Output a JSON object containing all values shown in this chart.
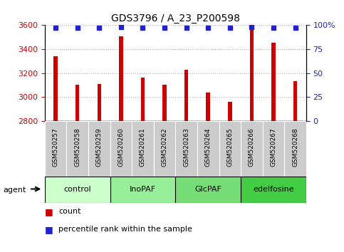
{
  "title": "GDS3796 / A_23_P200598",
  "samples": [
    "GSM520257",
    "GSM520258",
    "GSM520259",
    "GSM520260",
    "GSM520261",
    "GSM520262",
    "GSM520263",
    "GSM520264",
    "GSM520265",
    "GSM520266",
    "GSM520267",
    "GSM520268"
  ],
  "counts": [
    3340,
    3100,
    3110,
    3510,
    3160,
    3105,
    3230,
    3035,
    2960,
    3560,
    3455,
    3130
  ],
  "percentile_ranks": [
    97,
    97,
    97,
    98,
    97,
    97,
    97,
    97,
    97,
    98,
    97,
    97
  ],
  "ylim_left": [
    2800,
    3600
  ],
  "ylim_right": [
    0,
    100
  ],
  "yticks_left": [
    2800,
    3000,
    3200,
    3400,
    3600
  ],
  "yticks_right": [
    0,
    25,
    50,
    75,
    100
  ],
  "ytick_labels_right": [
    "0",
    "25",
    "50",
    "75",
    "100%"
  ],
  "bar_color": "#cc0000",
  "dot_color": "#2222cc",
  "bar_width": 0.18,
  "groups": [
    {
      "label": "control",
      "indices": [
        0,
        1,
        2
      ],
      "color": "#ccffcc"
    },
    {
      "label": "InoPAF",
      "indices": [
        3,
        4,
        5
      ],
      "color": "#99ee99"
    },
    {
      "label": "GlcPAF",
      "indices": [
        6,
        7,
        8
      ],
      "color": "#77dd77"
    },
    {
      "label": "edelfosine",
      "indices": [
        9,
        10,
        11
      ],
      "color": "#44cc44"
    }
  ],
  "xlabel_agent": "agent",
  "legend_count_label": "count",
  "legend_pct_label": "percentile rank within the sample",
  "left_axis_color": "#cc0000",
  "right_axis_color": "#2222cc",
  "grid_color": "#aaaaaa",
  "tick_box_color": "#cccccc",
  "baseline": 2800,
  "figsize": [
    4.83,
    3.54
  ],
  "dpi": 100
}
